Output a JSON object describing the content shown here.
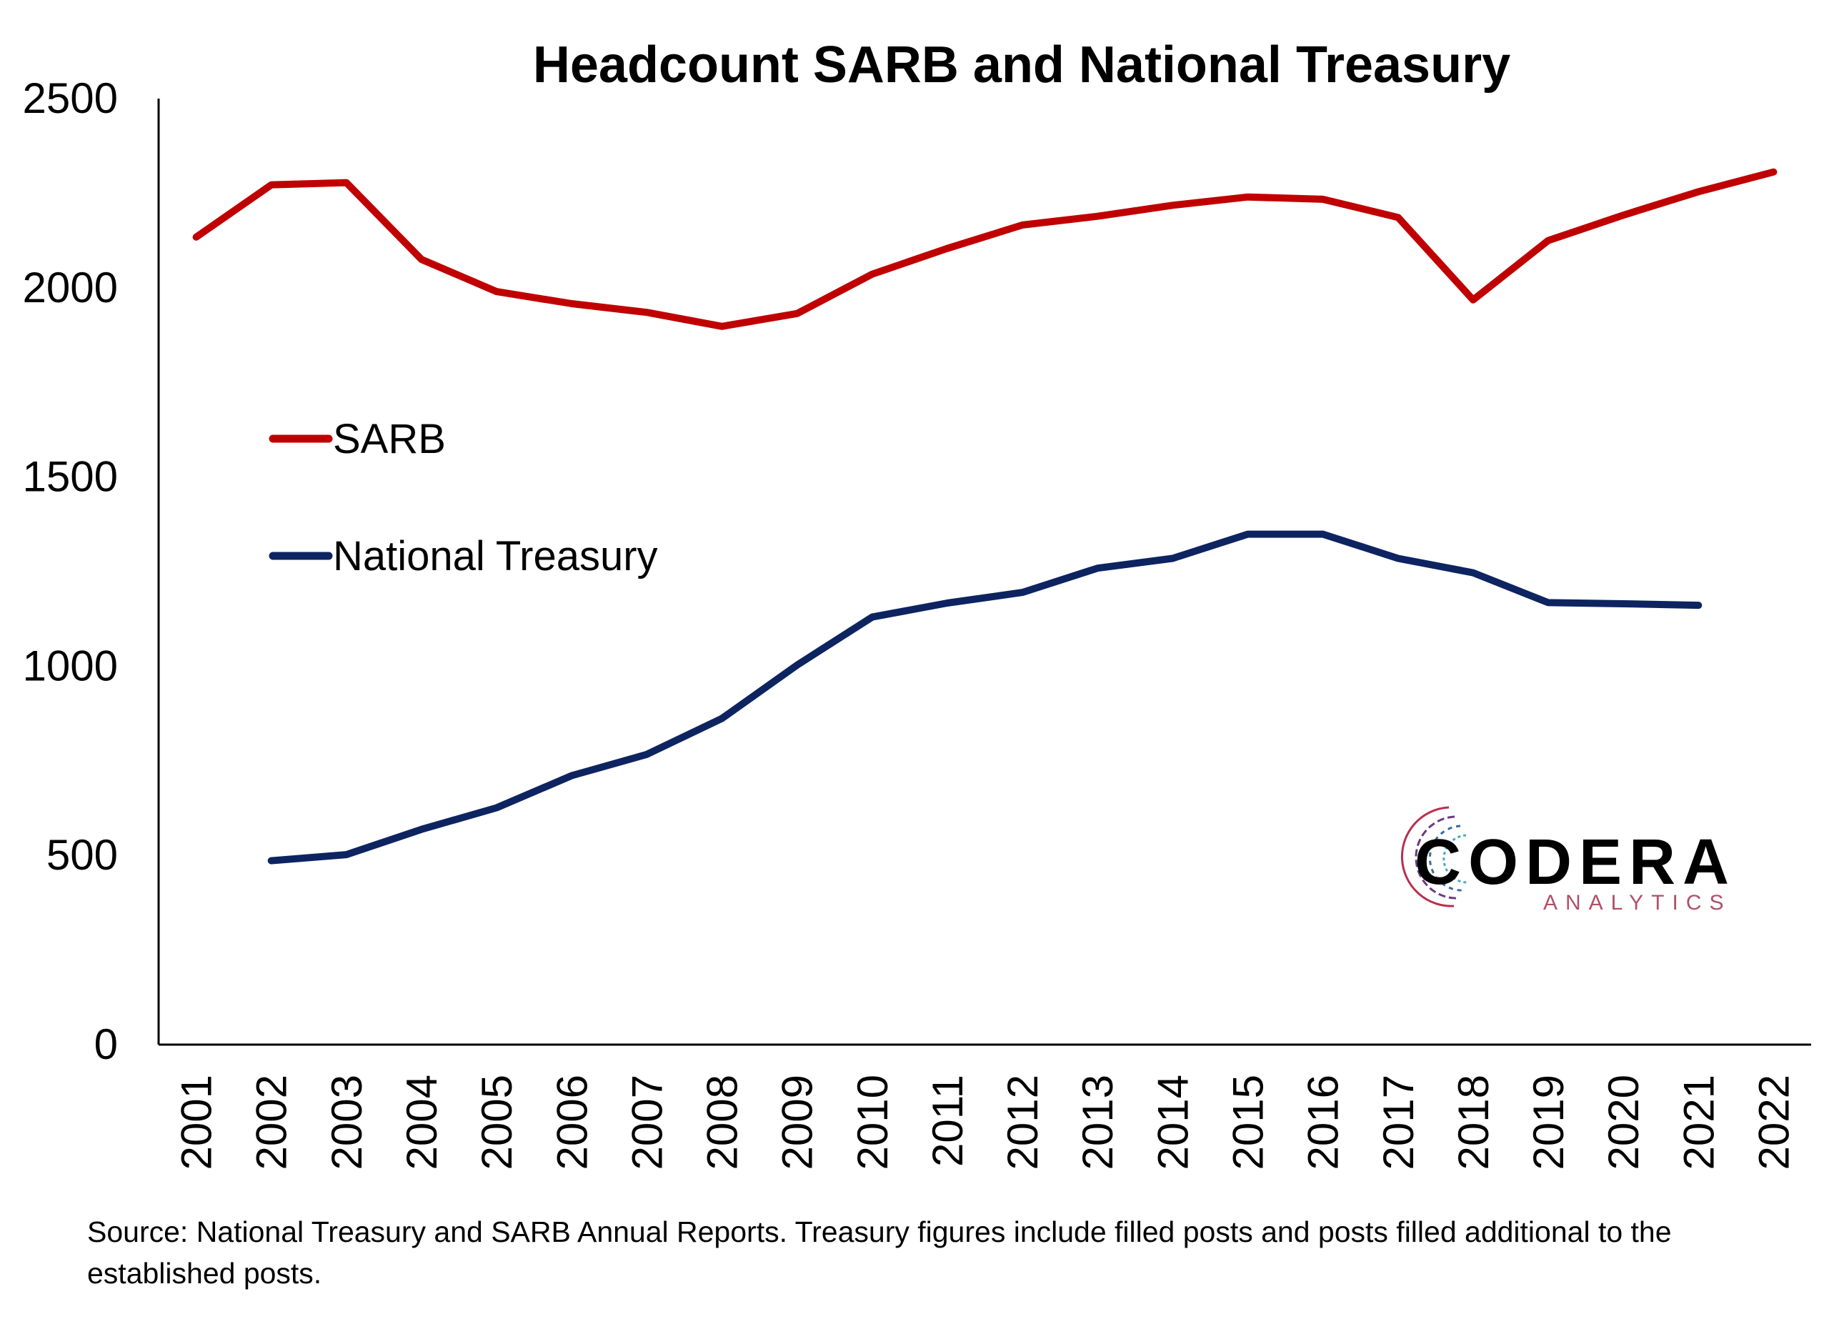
{
  "chart_data": {
    "type": "line",
    "title": "Headcount SARB and National Treasury",
    "xlabel": "",
    "ylabel": "",
    "x": [
      "2001",
      "2002",
      "2003",
      "2004",
      "2005",
      "2006",
      "2007",
      "2008",
      "2009",
      "2010",
      "2011",
      "2012",
      "2013",
      "2014",
      "2015",
      "2016",
      "2017",
      "2018",
      "2019",
      "2020",
      "2021",
      "2022"
    ],
    "ylim": [
      0,
      2500
    ],
    "yticks": [
      "0",
      "500",
      "1000",
      "1500",
      "2000",
      "2500"
    ],
    "grid": false,
    "legend_position": "left-middle",
    "series": [
      {
        "name": "SARB",
        "color": "#c00000",
        "values": [
          2134,
          2272,
          2278,
          2075,
          1990,
          1958,
          1935,
          1898,
          1932,
          2036,
          2104,
          2166,
          2189,
          2218,
          2240,
          2234,
          2186,
          1968,
          2125,
          2192,
          2254,
          2306
        ]
      },
      {
        "name": "National Treasury",
        "color": "#0d2461",
        "values": [
          null,
          486,
          502,
          569,
          626,
          711,
          767,
          862,
          1003,
          1130,
          1167,
          1195,
          1259,
          1285,
          1349,
          1349,
          1285,
          1247,
          1168,
          1165,
          1161,
          null
        ]
      }
    ]
  },
  "logo": {
    "name": "CODERA",
    "sub": "ANALYTICS"
  },
  "source_note": "Source: National Treasury and SARB Annual Reports. Treasury figures include filled posts and posts filled additional to the established posts."
}
